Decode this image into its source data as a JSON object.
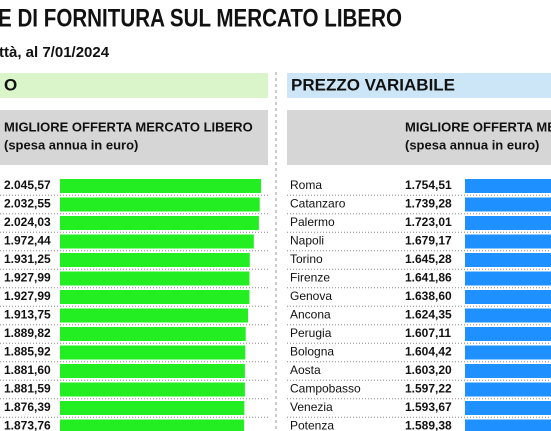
{
  "header": {
    "title": "E DI FORNITURA SUL MERCATO LIBERO",
    "subtitle": "ttà, al 7/01/2024"
  },
  "chart_data": [
    {
      "type": "bar",
      "title": "O",
      "column_header": "MIGLIORE OFFERTA MERCATO LIBERO",
      "column_unit": "(spesa annua in euro)",
      "color": "#22ee22",
      "values": [
        2045.57,
        2032.55,
        2024.03,
        1972.44,
        1931.25,
        1927.99,
        1927.99,
        1913.75,
        1889.82,
        1885.92,
        1881.6,
        1881.59,
        1876.39,
        1873.76
      ],
      "value_labels": [
        "2.045,57",
        "2.032,55",
        "2.024,03",
        "1.972,44",
        "1.931,25",
        "1.927,99",
        "1.927,99",
        "1.913,75",
        "1.889,82",
        "1.885,92",
        "1.881,60",
        "1.881,59",
        "1.876,39",
        "1.873,76"
      ]
    },
    {
      "type": "bar",
      "title": "PREZZO VARIABILE",
      "column_header": "MIGLIORE OFFERTA MERCATO LIBERO",
      "column_unit": "(spesa annua in euro)",
      "color": "#1e90ff",
      "categories": [
        "Roma",
        "Catanzaro",
        "Palermo",
        "Napoli",
        "Torino",
        "Firenze",
        "Genova",
        "Ancona",
        "Perugia",
        "Bologna",
        "Aosta",
        "Campobasso",
        "Venezia",
        "Potenza"
      ],
      "values": [
        1754.51,
        1739.28,
        1723.01,
        1679.17,
        1645.28,
        1641.86,
        1638.6,
        1624.35,
        1607.11,
        1604.42,
        1603.2,
        1597.22,
        1593.67,
        1589.38
      ],
      "value_labels": [
        "1.754,51",
        "1.739,28",
        "1.723,01",
        "1.679,17",
        "1.645,28",
        "1.641,86",
        "1.638,60",
        "1.624,35",
        "1.607,11",
        "1.604,42",
        "1.603,20",
        "1.597,22",
        "1.593,67",
        "1.589,38"
      ]
    }
  ]
}
